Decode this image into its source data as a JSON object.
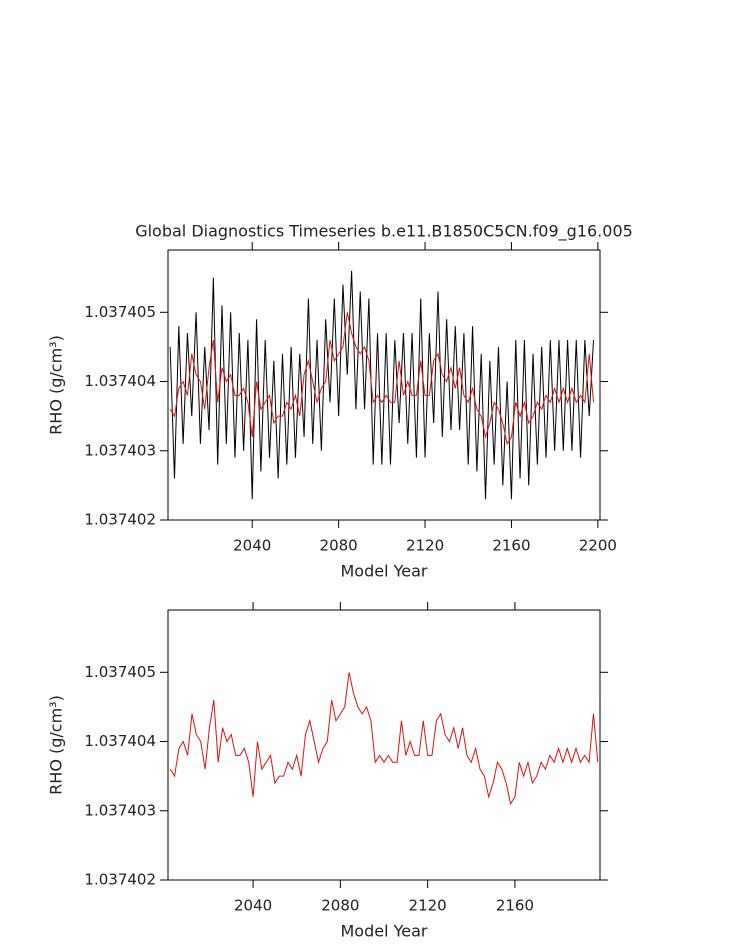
{
  "chart_data": [
    {
      "type": "line",
      "title": "Global Diagnostics Timeseries b.e11.B1850C5CN.f09_g16.005",
      "x_label": "Model Year",
      "y_label": "RHO (g/cm³)",
      "xlim": [
        2001,
        2201
      ],
      "xticks": [
        2040,
        2080,
        2120,
        2160,
        2200
      ],
      "ylim": [
        1.037402,
        1.0374059
      ],
      "yticks": [
        1.037402,
        1.037403,
        1.037404,
        1.037405
      ],
      "x": [
        2002,
        2004,
        2006,
        2008,
        2010,
        2012,
        2014,
        2016,
        2018,
        2020,
        2022,
        2024,
        2026,
        2028,
        2030,
        2032,
        2034,
        2036,
        2038,
        2040,
        2042,
        2044,
        2046,
        2048,
        2050,
        2052,
        2054,
        2056,
        2058,
        2060,
        2062,
        2064,
        2066,
        2068,
        2070,
        2072,
        2074,
        2076,
        2078,
        2080,
        2082,
        2084,
        2086,
        2088,
        2090,
        2092,
        2094,
        2096,
        2098,
        2100,
        2102,
        2104,
        2106,
        2108,
        2110,
        2112,
        2114,
        2116,
        2118,
        2120,
        2122,
        2124,
        2126,
        2128,
        2130,
        2132,
        2134,
        2136,
        2138,
        2140,
        2142,
        2144,
        2146,
        2148,
        2150,
        2152,
        2154,
        2156,
        2158,
        2160,
        2162,
        2164,
        2166,
        2168,
        2170,
        2172,
        2174,
        2176,
        2178,
        2180,
        2182,
        2184,
        2186,
        2188,
        2190,
        2192,
        2194,
        2196,
        2198
      ],
      "series": [
        {
          "color": "#000000",
          "values": [
            1.0374045,
            1.0374026,
            1.0374048,
            1.0374031,
            1.0374047,
            1.0374035,
            1.037405,
            1.0374031,
            1.0374045,
            1.0374033,
            1.0374055,
            1.0374028,
            1.0374051,
            1.0374031,
            1.037405,
            1.0374029,
            1.0374047,
            1.037403,
            1.0374046,
            1.0374023,
            1.0374049,
            1.0374027,
            1.0374046,
            1.0374029,
            1.0374043,
            1.0374026,
            1.0374044,
            1.0374028,
            1.0374045,
            1.0374029,
            1.0374044,
            1.0374032,
            1.0374052,
            1.0374031,
            1.0374046,
            1.037403,
            1.0374049,
            1.0374037,
            1.0374052,
            1.0374035,
            1.0374054,
            1.0374041,
            1.0374056,
            1.0374036,
            1.0374053,
            1.0374036,
            1.0374052,
            1.0374028,
            1.0374047,
            1.0374028,
            1.0374047,
            1.0374028,
            1.0374046,
            1.0374034,
            1.0374047,
            1.0374031,
            1.0374047,
            1.0374029,
            1.0374052,
            1.0374029,
            1.0374047,
            1.0374034,
            1.0374053,
            1.0374032,
            1.0374049,
            1.0374033,
            1.0374048,
            1.0374033,
            1.0374047,
            1.0374028,
            1.0374048,
            1.0374027,
            1.0374044,
            1.0374023,
            1.0374043,
            1.0374028,
            1.0374045,
            1.0374025,
            1.037404,
            1.0374023,
            1.0374046,
            1.0374026,
            1.0374046,
            1.0374025,
            1.0374044,
            1.0374028,
            1.0374045,
            1.0374029,
            1.0374046,
            1.037403,
            1.0374046,
            1.037403,
            1.0374046,
            1.037403,
            1.0374046,
            1.0374029,
            1.0374046,
            1.0374035,
            1.0374046
          ]
        },
        {
          "color": "#e01010",
          "values": [
            1.0374036,
            1.0374035,
            1.0374039,
            1.037404,
            1.0374038,
            1.0374044,
            1.0374041,
            1.037404,
            1.0374036,
            1.0374042,
            1.0374046,
            1.0374037,
            1.0374042,
            1.037404,
            1.0374041,
            1.0374038,
            1.0374038,
            1.0374039,
            1.0374037,
            1.0374032,
            1.037404,
            1.0374036,
            1.0374037,
            1.0374038,
            1.0374034,
            1.0374035,
            1.0374035,
            1.0374037,
            1.0374036,
            1.0374038,
            1.0374035,
            1.0374041,
            1.0374043,
            1.037404,
            1.0374037,
            1.0374039,
            1.037404,
            1.0374046,
            1.0374043,
            1.0374044,
            1.0374045,
            1.037405,
            1.0374047,
            1.0374045,
            1.0374044,
            1.0374045,
            1.0374043,
            1.0374037,
            1.0374038,
            1.0374037,
            1.0374038,
            1.0374037,
            1.0374037,
            1.0374043,
            1.0374038,
            1.037404,
            1.0374038,
            1.0374038,
            1.0374043,
            1.0374038,
            1.0374038,
            1.0374043,
            1.0374044,
            1.0374041,
            1.037404,
            1.0374042,
            1.0374039,
            1.0374042,
            1.0374038,
            1.0374037,
            1.0374039,
            1.0374036,
            1.0374035,
            1.0374032,
            1.0374034,
            1.0374037,
            1.0374036,
            1.0374034,
            1.0374031,
            1.0374032,
            1.0374037,
            1.0374035,
            1.0374037,
            1.0374034,
            1.0374035,
            1.0374037,
            1.0374036,
            1.0374038,
            1.0374037,
            1.0374039,
            1.0374037,
            1.0374039,
            1.0374037,
            1.0374039,
            1.0374037,
            1.0374038,
            1.0374037,
            1.0374044,
            1.0374037
          ]
        }
      ]
    },
    {
      "type": "line",
      "x_label": "Model Year",
      "y_label": "RHO (g/cm³)",
      "xlim": [
        2001,
        2199
      ],
      "xticks": [
        2040,
        2080,
        2120,
        2160
      ],
      "ylim": [
        1.037402,
        1.0374059
      ],
      "yticks": [
        1.037402,
        1.037403,
        1.037404,
        1.037405
      ],
      "x": [
        2002,
        2004,
        2006,
        2008,
        2010,
        2012,
        2014,
        2016,
        2018,
        2020,
        2022,
        2024,
        2026,
        2028,
        2030,
        2032,
        2034,
        2036,
        2038,
        2040,
        2042,
        2044,
        2046,
        2048,
        2050,
        2052,
        2054,
        2056,
        2058,
        2060,
        2062,
        2064,
        2066,
        2068,
        2070,
        2072,
        2074,
        2076,
        2078,
        2080,
        2082,
        2084,
        2086,
        2088,
        2090,
        2092,
        2094,
        2096,
        2098,
        2100,
        2102,
        2104,
        2106,
        2108,
        2110,
        2112,
        2114,
        2116,
        2118,
        2120,
        2122,
        2124,
        2126,
        2128,
        2130,
        2132,
        2134,
        2136,
        2138,
        2140,
        2142,
        2144,
        2146,
        2148,
        2150,
        2152,
        2154,
        2156,
        2158,
        2160,
        2162,
        2164,
        2166,
        2168,
        2170,
        2172,
        2174,
        2176,
        2178,
        2180,
        2182,
        2184,
        2186,
        2188,
        2190,
        2192,
        2194,
        2196,
        2198
      ],
      "series": [
        {
          "color": "#e01010",
          "values": [
            1.0374036,
            1.0374035,
            1.0374039,
            1.037404,
            1.0374038,
            1.0374044,
            1.0374041,
            1.037404,
            1.0374036,
            1.0374042,
            1.0374046,
            1.0374037,
            1.0374042,
            1.037404,
            1.0374041,
            1.0374038,
            1.0374038,
            1.0374039,
            1.0374037,
            1.0374032,
            1.037404,
            1.0374036,
            1.0374037,
            1.0374038,
            1.0374034,
            1.0374035,
            1.0374035,
            1.0374037,
            1.0374036,
            1.0374038,
            1.0374035,
            1.0374041,
            1.0374043,
            1.037404,
            1.0374037,
            1.0374039,
            1.037404,
            1.0374046,
            1.0374043,
            1.0374044,
            1.0374045,
            1.037405,
            1.0374047,
            1.0374045,
            1.0374044,
            1.0374045,
            1.0374043,
            1.0374037,
            1.0374038,
            1.0374037,
            1.0374038,
            1.0374037,
            1.0374037,
            1.0374043,
            1.0374038,
            1.037404,
            1.0374038,
            1.0374038,
            1.0374043,
            1.0374038,
            1.0374038,
            1.0374043,
            1.0374044,
            1.0374041,
            1.037404,
            1.0374042,
            1.0374039,
            1.0374042,
            1.0374038,
            1.0374037,
            1.0374039,
            1.0374036,
            1.0374035,
            1.0374032,
            1.0374034,
            1.0374037,
            1.0374036,
            1.0374034,
            1.0374031,
            1.0374032,
            1.0374037,
            1.0374035,
            1.0374037,
            1.0374034,
            1.0374035,
            1.0374037,
            1.0374036,
            1.0374038,
            1.0374037,
            1.0374039,
            1.0374037,
            1.0374039,
            1.0374037,
            1.0374039,
            1.0374037,
            1.0374038,
            1.0374037,
            1.0374044,
            1.0374037
          ]
        }
      ]
    }
  ]
}
